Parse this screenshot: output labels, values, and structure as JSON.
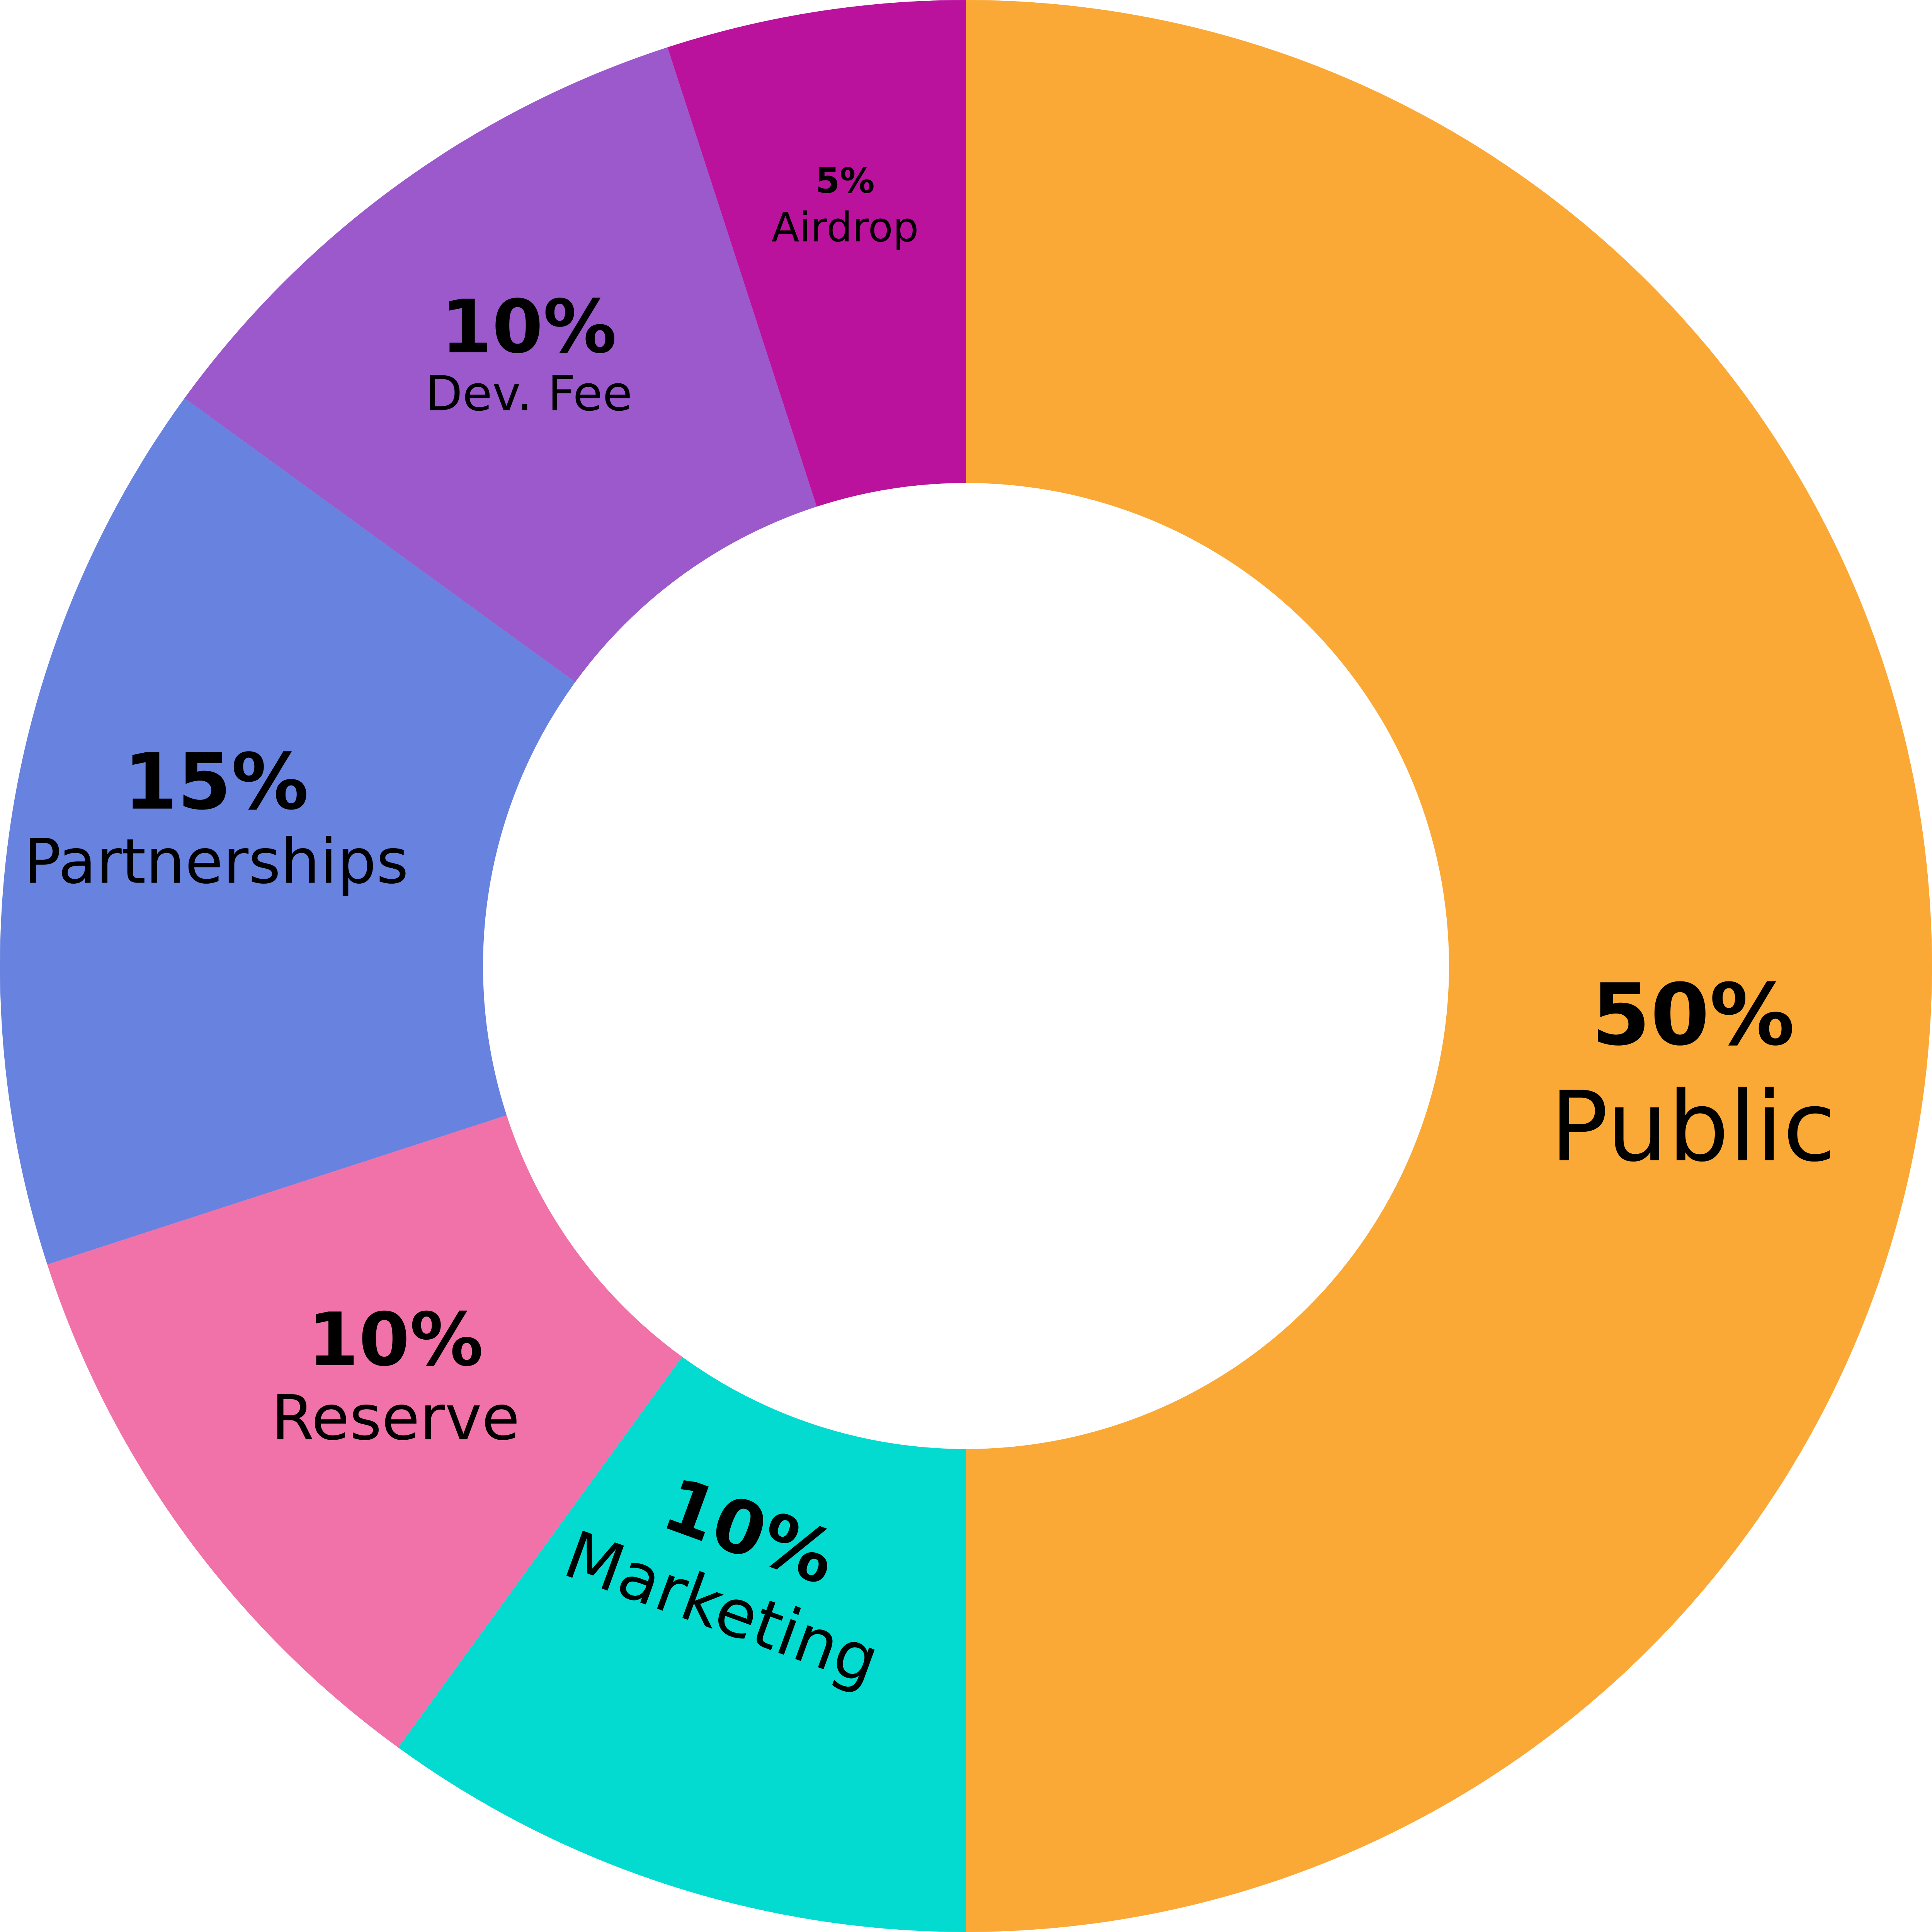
{
  "chart_data": {
    "type": "pie",
    "donut": true,
    "start": "top",
    "direction": "clockwise",
    "slices": [
      {
        "label": "Public",
        "value": 50,
        "value_label": "50%",
        "color": "#fba936"
      },
      {
        "label": "Marketing",
        "value": 10,
        "value_label": "10%",
        "color": "#03dbd1"
      },
      {
        "label": "Reserve",
        "value": 10,
        "value_label": "10%",
        "color": "#f072a9"
      },
      {
        "label": "Partnerships",
        "value": 15,
        "value_label": "15%",
        "color": "#6782df"
      },
      {
        "label": "Dev. Fee",
        "value": 10,
        "value_label": "10%",
        "color": "#9b59cb"
      },
      {
        "label": "Airdrop",
        "value": 5,
        "value_label": "5%",
        "color": "#bb129e"
      }
    ]
  }
}
